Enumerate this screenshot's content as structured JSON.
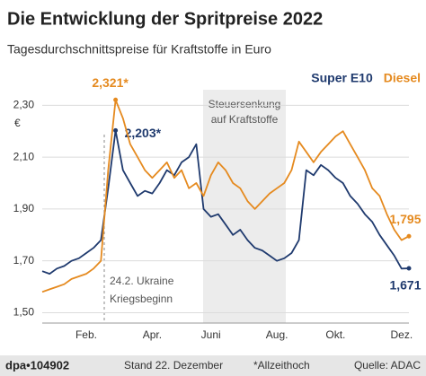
{
  "chart_data": {
    "type": "line",
    "title": "Die Entwicklung der Spritpreise 2022",
    "subtitle": "Tagesdurchschnittspreise für Kraftstoffe in Euro",
    "y_unit": "€",
    "annotations": {
      "shade": [
        "Steuersenkung",
        "auf Kraftstoffe"
      ],
      "event": [
        "24.2. Ukraine",
        "Kriegsbeginn"
      ]
    },
    "footer": {
      "source_id": "dpa•104902",
      "date": "Stand 22. Dezember",
      "note": "*Allzeithoch",
      "source": "Quelle: ADAC"
    },
    "categories": [
      null,
      null,
      null,
      null,
      null,
      null,
      "Feb.",
      null,
      null,
      null,
      null,
      null,
      null,
      null,
      null,
      "Apr.",
      null,
      null,
      null,
      null,
      null,
      null,
      null,
      "Juni",
      null,
      null,
      null,
      null,
      null,
      null,
      null,
      null,
      "Aug.",
      null,
      null,
      null,
      null,
      null,
      null,
      null,
      "Okt.",
      null,
      null,
      null,
      null,
      null,
      null,
      null,
      null,
      "Dez.",
      null
    ],
    "ylim": [
      1.46,
      2.36
    ],
    "yticks": [
      {
        "value": 1.5,
        "label": "1,50"
      },
      {
        "value": 1.7,
        "label": "1,70"
      },
      {
        "value": 1.9,
        "label": "1,90"
      },
      {
        "value": 2.1,
        "label": "2,10"
      },
      {
        "value": 2.3,
        "label": "2,30"
      }
    ],
    "grid": true,
    "legend": "top-right",
    "series": [
      {
        "name": "Super E10",
        "color": "#1f3a6e",
        "values": [
          1.66,
          1.65,
          1.67,
          1.68,
          1.7,
          1.71,
          1.73,
          1.75,
          1.78,
          1.98,
          2.203,
          2.05,
          2.0,
          1.95,
          1.97,
          1.96,
          2.0,
          2.05,
          2.03,
          2.08,
          2.1,
          2.15,
          1.9,
          1.87,
          1.88,
          1.84,
          1.8,
          1.82,
          1.78,
          1.75,
          1.74,
          1.72,
          1.7,
          1.71,
          1.73,
          1.78,
          2.05,
          2.03,
          2.07,
          2.05,
          2.02,
          2.0,
          1.95,
          1.92,
          1.88,
          1.85,
          1.8,
          1.76,
          1.72,
          1.67,
          1.671
        ],
        "value_labels": [
          null,
          null,
          null,
          null,
          null,
          null,
          null,
          null,
          null,
          null,
          "2,203*",
          null,
          null,
          null,
          null,
          null,
          null,
          null,
          null,
          null,
          null,
          null,
          null,
          null,
          null,
          null,
          null,
          null,
          null,
          null,
          null,
          null,
          null,
          null,
          null,
          null,
          null,
          null,
          null,
          null,
          null,
          null,
          null,
          null,
          null,
          null,
          null,
          null,
          null,
          null,
          "1,671"
        ]
      },
      {
        "name": "Diesel",
        "color": "#e58a1f",
        "values": [
          1.58,
          1.59,
          1.6,
          1.61,
          1.63,
          1.64,
          1.65,
          1.67,
          1.7,
          2.05,
          2.321,
          2.25,
          2.15,
          2.1,
          2.05,
          2.02,
          2.05,
          2.08,
          2.02,
          2.05,
          1.98,
          2.0,
          1.95,
          2.03,
          2.08,
          2.05,
          2.0,
          1.98,
          1.93,
          1.9,
          1.93,
          1.96,
          1.98,
          2.0,
          2.05,
          2.16,
          2.12,
          2.08,
          2.12,
          2.15,
          2.18,
          2.2,
          2.15,
          2.1,
          2.05,
          1.98,
          1.95,
          1.88,
          1.82,
          1.78,
          1.795
        ],
        "value_labels": [
          null,
          null,
          null,
          null,
          null,
          null,
          null,
          null,
          null,
          null,
          "2,321*",
          null,
          null,
          null,
          null,
          null,
          null,
          null,
          null,
          null,
          null,
          null,
          null,
          null,
          null,
          null,
          null,
          null,
          null,
          null,
          null,
          null,
          null,
          null,
          null,
          null,
          null,
          null,
          null,
          null,
          null,
          null,
          null,
          null,
          null,
          null,
          null,
          null,
          null,
          null,
          "1,795"
        ]
      }
    ]
  }
}
